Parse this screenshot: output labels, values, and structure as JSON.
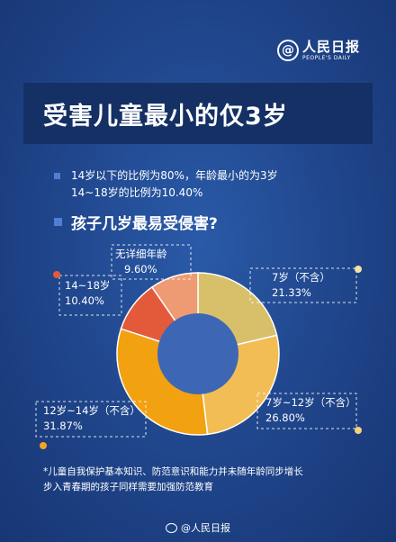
{
  "brand": {
    "name": "人民日报",
    "name_en": "PEOPLE'S DAILY",
    "mark": "@"
  },
  "header": {
    "title": "受害儿童最小的仅3岁"
  },
  "stats": [
    "14岁以下的比例为80%，年龄最小的为3岁",
    "14~18岁的比例为10.40%"
  ],
  "subtitle": "孩子几岁最易受侵害?",
  "chart_data": {
    "type": "pie",
    "title": "",
    "series": [
      {
        "slices": [
          {
            "label": "7岁（不含）",
            "value": 21.33,
            "value_label": "21.33%",
            "color": "#d8c06a"
          },
          {
            "label": "7岁~12岁（不含）",
            "value": 26.8,
            "value_label": "26.80%",
            "color": "#f2bd55"
          },
          {
            "label": "12岁~14岁（不含）",
            "value": 31.87,
            "value_label": "31.87%",
            "color": "#f2a111"
          },
          {
            "label": "14~18岁",
            "value": 10.4,
            "value_label": "10.40%",
            "color": "#e35a3a"
          },
          {
            "label": "无详细年龄",
            "value": 9.6,
            "value_label": "9.60%",
            "color": "#ee9a72"
          }
        ]
      }
    ],
    "donut": true,
    "center_color": "#3d67b5",
    "legend": "none"
  },
  "footnote": [
    "*儿童自我保护基本知识、防范意识和能力并未随年龄同步增长",
    "步入青春期的孩子同样需要加强防范教育"
  ],
  "footer": {
    "source": "@人民日报"
  }
}
